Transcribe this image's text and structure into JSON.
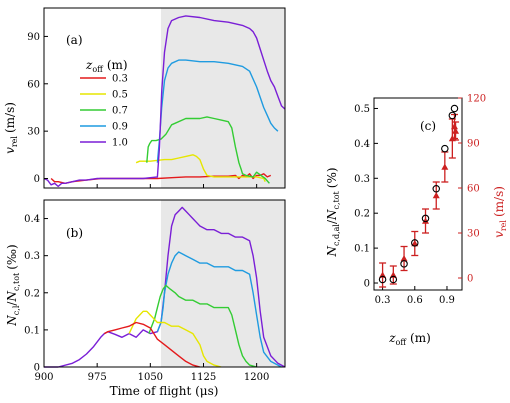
{
  "chart_data": [
    {
      "id": "a",
      "type": "line",
      "panel_label": "(a)",
      "ylabel": "v_rel (m/s)",
      "ylabel_main": "v",
      "ylabel_sub": "rel",
      "ylabel_unit": "(m/s)",
      "xlim": [
        900,
        1240
      ],
      "ylim": [
        -6,
        108
      ],
      "yticks": [
        0,
        30,
        60,
        90
      ],
      "shaded_x": [
        1065,
        1240
      ],
      "legend_title": "z_off (m)",
      "legend_title_main": "z",
      "legend_title_sub": "off",
      "legend_title_unit": "(m)",
      "legend_placement": "upper-left",
      "series": [
        {
          "name": "0.3",
          "color": "#e41a1c",
          "x": [
            910,
            915,
            920,
            930,
            940,
            960,
            980,
            1000,
            1020,
            1040,
            1060,
            1080,
            1100,
            1120,
            1140,
            1160,
            1170,
            1175,
            1180,
            1185,
            1190,
            1195,
            1200,
            1205,
            1210,
            1215,
            1220
          ],
          "y": [
            0,
            -2,
            -2,
            -3,
            -2,
            -1,
            0,
            0,
            0,
            0,
            0,
            0.5,
            1,
            1,
            1.5,
            1.5,
            2,
            0,
            2,
            1,
            3,
            0,
            2,
            2,
            3,
            1,
            2
          ]
        },
        {
          "name": "0.5",
          "color": "#e6e600",
          "x": [
            1030,
            1035,
            1040,
            1050,
            1070,
            1080,
            1090,
            1100,
            1110,
            1115,
            1120,
            1125,
            1130,
            1140,
            1160,
            1180,
            1200,
            1210,
            1212
          ],
          "y": [
            10,
            11,
            11,
            11,
            12,
            12,
            13,
            14,
            15,
            14,
            12,
            6,
            2,
            1,
            1,
            1,
            1,
            0,
            -2
          ]
        },
        {
          "name": "0.7",
          "color": "#33cc33",
          "x": [
            1045,
            1047,
            1049,
            1052,
            1058,
            1065,
            1072,
            1080,
            1100,
            1120,
            1130,
            1140,
            1150,
            1160,
            1165,
            1170,
            1175,
            1178,
            1180,
            1185,
            1195,
            1200,
            1212,
            1218
          ],
          "y": [
            10,
            20,
            22,
            24,
            24,
            25,
            28,
            34,
            38,
            38,
            39,
            38,
            37,
            36,
            32,
            20,
            10,
            6,
            3,
            2,
            1,
            4,
            0,
            -3
          ]
        },
        {
          "name": "0.9",
          "color": "#1f9be0",
          "x": [
            1060,
            1063,
            1066,
            1070,
            1075,
            1080,
            1090,
            1100,
            1120,
            1140,
            1160,
            1180,
            1190,
            1200,
            1210,
            1215,
            1220,
            1225,
            1230
          ],
          "y": [
            10,
            25,
            45,
            62,
            70,
            73,
            75,
            75,
            74,
            74,
            73,
            71,
            68,
            58,
            45,
            40,
            35,
            32,
            30
          ]
        },
        {
          "name": "1.0",
          "color": "#7a1fd6",
          "x": [
            900,
            905,
            910,
            915,
            920,
            925,
            930,
            940,
            950,
            960,
            975,
            1000,
            1020,
            1040,
            1060,
            1063,
            1066,
            1070,
            1075,
            1080,
            1090,
            1100,
            1120,
            1140,
            1160,
            1180,
            1190,
            1195,
            1200,
            1205,
            1210,
            1215,
            1220,
            1225,
            1230,
            1235,
            1240
          ],
          "y": [
            0,
            -1,
            -4,
            -3,
            -5,
            -3,
            -3,
            -2,
            -1,
            -1,
            0,
            0,
            0,
            0,
            1,
            20,
            55,
            80,
            95,
            100,
            102,
            103,
            102,
            100,
            99,
            97,
            95,
            93,
            89,
            82,
            75,
            68,
            62,
            58,
            52,
            46,
            44
          ]
        }
      ]
    },
    {
      "id": "b",
      "type": "line",
      "panel_label": "(b)",
      "ylabel": "N_c,l/N_c,tot (%o)",
      "ylabel_num": "N",
      "ylabel_num_sub": "c,l",
      "ylabel_den": "N",
      "ylabel_den_sub": "c,tot",
      "ylabel_unit": "(‰)",
      "xlabel": "Time of flight (μs)",
      "xlim": [
        900,
        1240
      ],
      "ylim": [
        0,
        0.45
      ],
      "yticks": [
        0,
        0.1,
        0.2,
        0.3,
        0.4
      ],
      "xticks": [
        900,
        975,
        1050,
        1125,
        1200
      ],
      "shaded_x": [
        1065,
        1240
      ],
      "series": [
        {
          "name": "1.0",
          "color": "#7a1fd6",
          "x": [
            900,
            920,
            940,
            950,
            960,
            970,
            980,
            985,
            990,
            1000,
            1010,
            1020,
            1030,
            1040,
            1050,
            1060,
            1065,
            1070,
            1075,
            1080,
            1085,
            1090,
            1095,
            1100,
            1105,
            1110,
            1115,
            1120,
            1130,
            1140,
            1150,
            1160,
            1170,
            1180,
            1190,
            1195,
            1200,
            1205,
            1210,
            1220,
            1230,
            1240
          ],
          "y": [
            0,
            0,
            0.01,
            0.02,
            0.035,
            0.055,
            0.08,
            0.09,
            0.095,
            0.088,
            0.08,
            0.09,
            0.08,
            0.1,
            0.09,
            0.095,
            0.12,
            0.2,
            0.3,
            0.38,
            0.41,
            0.42,
            0.43,
            0.42,
            0.41,
            0.4,
            0.39,
            0.38,
            0.37,
            0.37,
            0.36,
            0.36,
            0.35,
            0.35,
            0.34,
            0.3,
            0.24,
            0.15,
            0.08,
            0.03,
            0.01,
            0
          ]
        },
        {
          "name": "0.9",
          "color": "#1f9be0",
          "x": [
            1060,
            1065,
            1068,
            1070,
            1075,
            1080,
            1085,
            1090,
            1100,
            1110,
            1120,
            1130,
            1140,
            1150,
            1160,
            1170,
            1180,
            1190,
            1195,
            1200,
            1205,
            1210,
            1220,
            1230,
            1235
          ],
          "y": [
            0.095,
            0.12,
            0.16,
            0.2,
            0.25,
            0.28,
            0.3,
            0.31,
            0.3,
            0.29,
            0.28,
            0.28,
            0.27,
            0.27,
            0.27,
            0.26,
            0.26,
            0.25,
            0.2,
            0.14,
            0.08,
            0.04,
            0.015,
            0.005,
            0
          ]
        },
        {
          "name": "0.7",
          "color": "#33cc33",
          "x": [
            1048,
            1052,
            1056,
            1060,
            1064,
            1068,
            1072,
            1078,
            1085,
            1090,
            1100,
            1110,
            1120,
            1130,
            1140,
            1150,
            1160,
            1165,
            1170,
            1175,
            1180,
            1185,
            1190,
            1200
          ],
          "y": [
            0.09,
            0.11,
            0.13,
            0.16,
            0.19,
            0.21,
            0.22,
            0.21,
            0.2,
            0.19,
            0.18,
            0.18,
            0.17,
            0.17,
            0.16,
            0.16,
            0.16,
            0.14,
            0.1,
            0.06,
            0.03,
            0.015,
            0.005,
            0
          ]
        },
        {
          "name": "0.5",
          "color": "#e6e600",
          "x": [
            1020,
            1025,
            1030,
            1035,
            1040,
            1045,
            1050,
            1055,
            1060,
            1070,
            1080,
            1090,
            1100,
            1110,
            1120,
            1125,
            1130,
            1140,
            1150
          ],
          "y": [
            0.09,
            0.11,
            0.13,
            0.14,
            0.15,
            0.15,
            0.14,
            0.13,
            0.12,
            0.12,
            0.11,
            0.11,
            0.1,
            0.09,
            0.06,
            0.03,
            0.015,
            0.005,
            0
          ]
        },
        {
          "name": "0.3",
          "color": "#e41a1c",
          "x": [
            985,
            990,
            1000,
            1010,
            1020,
            1030,
            1040,
            1050,
            1055,
            1060,
            1070,
            1080,
            1090,
            1100,
            1110,
            1120
          ],
          "y": [
            0.09,
            0.095,
            0.1,
            0.105,
            0.11,
            0.12,
            0.115,
            0.105,
            0.09,
            0.075,
            0.06,
            0.045,
            0.03,
            0.015,
            0.005,
            0
          ]
        }
      ]
    },
    {
      "id": "c",
      "type": "scatter",
      "panel_label": "(c)",
      "xlabel": "z_off (m)",
      "xlabel_main": "z",
      "xlabel_sub": "off",
      "xlabel_unit": "(m)",
      "ylabel": "N_c,d,al/N_c,tot (%)",
      "ylabel_num": "N",
      "ylabel_num_sub": "c,d,al",
      "ylabel_den": "N",
      "ylabel_den_sub": "c,tot",
      "ylabel_unit": "(%)",
      "y2label": "v_rel (m/s)",
      "y2label_main": "v",
      "y2label_sub": "rel",
      "y2label_unit": "(m/s)",
      "xlim": [
        0.22,
        1.04
      ],
      "xticks": [
        0.3,
        0.6,
        0.9
      ],
      "ylim": [
        -0.02,
        0.53
      ],
      "yticks": [
        0,
        0.1,
        0.2,
        0.3,
        0.4,
        0.5
      ],
      "y2lim": [
        -8,
        120
      ],
      "y2ticks": [
        0,
        30,
        60,
        90,
        120
      ],
      "y2_color": "#cc2020",
      "circles": {
        "x": [
          0.3,
          0.4,
          0.5,
          0.6,
          0.7,
          0.8,
          0.88,
          0.95,
          0.97
        ],
        "y": [
          0.01,
          0.01,
          0.055,
          0.115,
          0.185,
          0.27,
          0.385,
          0.48,
          0.5
        ]
      },
      "triangles_right_axis": {
        "x": [
          0.3,
          0.4,
          0.5,
          0.6,
          0.7,
          0.8,
          0.88,
          0.95,
          0.97,
          0.98
        ],
        "y": [
          2,
          2,
          13,
          23,
          38,
          55,
          74,
          93,
          101,
          98
        ],
        "err": [
          8,
          6,
          8,
          8,
          8,
          9,
          10,
          13,
          8,
          6
        ],
        "color": "#cc2020"
      }
    }
  ]
}
